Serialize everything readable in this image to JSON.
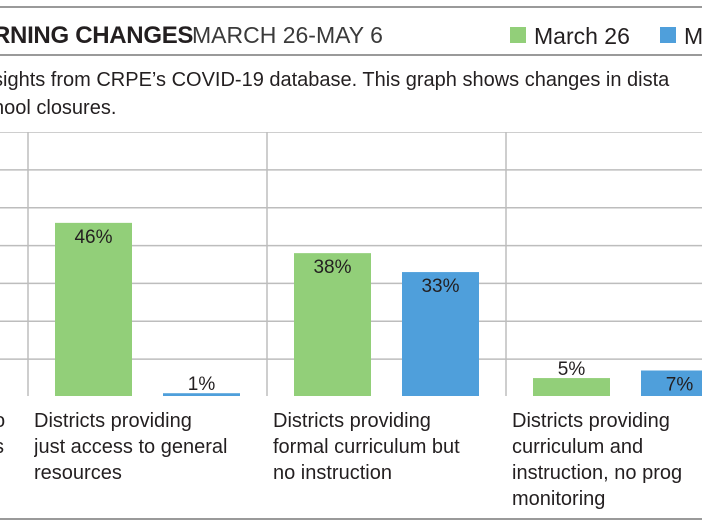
{
  "header": {
    "title_bold": "RNING CHANGES",
    "title_light": "MARCH 26-MAY 6"
  },
  "subtitle": "sights from CRPE’s COVID-19 database. This graph shows changes in dista\nhool closures.",
  "colors": {
    "march": "#92cf79",
    "may": "#4f9fdb",
    "grid": "#bdbdbd",
    "rule": "#9a9a9a",
    "text": "#231f20"
  },
  "chart_data": {
    "type": "bar",
    "title": "RNING CHANGES MARCH 26-MAY 6",
    "categories": [
      "Districts providing\njust access to general\nresources",
      "Districts providing\nformal curriculum but\nno instruction",
      "Districts providing\ncurriculum and\ninstruction, no prog\nmonitoring"
    ],
    "partial_left_label": "o\ns",
    "series": [
      {
        "name": "March 26",
        "values": [
          46,
          38,
          5
        ],
        "labels": [
          "46%",
          "38%",
          "5%"
        ]
      },
      {
        "name": "M",
        "values": [
          1,
          33,
          7
        ],
        "labels": [
          "1%",
          "33%",
          "7%"
        ]
      }
    ],
    "ylim": [
      0,
      70
    ],
    "grid": true,
    "legend": "top-right"
  }
}
